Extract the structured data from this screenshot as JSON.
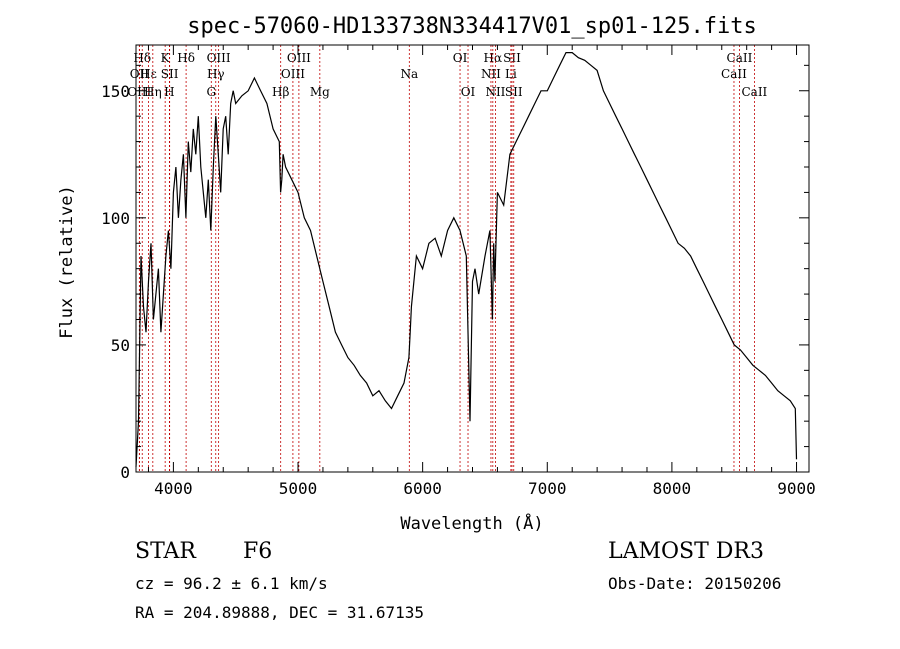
{
  "chart_data": {
    "type": "line",
    "title": "spec-57060-HD133738N334417V01_sp01-125.fits",
    "xlabel": "Wavelength (Å)",
    "ylabel": "Flux (relative)",
    "xlim": [
      3700,
      9100
    ],
    "ylim": [
      0,
      168
    ],
    "x_ticks": [
      4000,
      5000,
      6000,
      7000,
      8000,
      9000
    ],
    "y_ticks": [
      0,
      50,
      100,
      150
    ],
    "grid": false,
    "series": [
      {
        "x": [
          3700,
          3720,
          3740,
          3760,
          3780,
          3800,
          3820,
          3840,
          3860,
          3880,
          3900,
          3920,
          3940,
          3960,
          3980,
          4000,
          4020,
          4040,
          4060,
          4080,
          4100,
          4120,
          4140,
          4160,
          4180,
          4200,
          4220,
          4240,
          4260,
          4280,
          4300,
          4320,
          4340,
          4360,
          4380,
          4400,
          4420,
          4440,
          4460,
          4480,
          4500,
          4550,
          4600,
          4650,
          4700,
          4750,
          4800,
          4850,
          4860,
          4870,
          4880,
          4900,
          4950,
          5000,
          5050,
          5100,
          5150,
          5200,
          5250,
          5300,
          5350,
          5400,
          5450,
          5500,
          5550,
          5600,
          5650,
          5700,
          5750,
          5800,
          5850,
          5890,
          5900,
          5910,
          5950,
          6000,
          6050,
          6100,
          6150,
          6200,
          6250,
          6300,
          6350,
          6380,
          6400,
          6420,
          6450,
          6500,
          6540,
          6560,
          6570,
          6580,
          6600,
          6650,
          6700,
          6750,
          6800,
          6850,
          6900,
          6950,
          7000,
          7050,
          7100,
          7150,
          7200,
          7250,
          7300,
          7350,
          7400,
          7450,
          7500,
          7550,
          7600,
          7650,
          7700,
          7750,
          7800,
          7850,
          7900,
          7950,
          8000,
          8050,
          8100,
          8150,
          8200,
          8250,
          8300,
          8350,
          8400,
          8450,
          8500,
          8550,
          8600,
          8650,
          8700,
          8750,
          8800,
          8850,
          8900,
          8950,
          8990,
          9000
        ],
        "y": [
          2,
          20,
          85,
          65,
          55,
          75,
          90,
          60,
          70,
          80,
          55,
          70,
          85,
          95,
          80,
          110,
          120,
          100,
          115,
          125,
          100,
          130,
          118,
          135,
          125,
          140,
          120,
          110,
          100,
          115,
          95,
          120,
          140,
          125,
          110,
          135,
          140,
          125,
          145,
          150,
          145,
          148,
          150,
          155,
          150,
          145,
          135,
          130,
          110,
          115,
          125,
          120,
          115,
          110,
          100,
          95,
          85,
          75,
          65,
          55,
          50,
          45,
          42,
          38,
          35,
          30,
          32,
          28,
          25,
          30,
          35,
          45,
          55,
          65,
          85,
          80,
          90,
          92,
          85,
          95,
          100,
          95,
          85,
          20,
          75,
          80,
          70,
          85,
          95,
          60,
          90,
          75,
          110,
          105,
          125,
          130,
          135,
          140,
          145,
          150,
          150,
          155,
          160,
          165,
          165,
          163,
          162,
          160,
          158,
          150,
          145,
          140,
          135,
          130,
          125,
          120,
          115,
          110,
          105,
          100,
          95,
          90,
          88,
          85,
          80,
          75,
          70,
          65,
          60,
          55,
          50,
          48,
          45,
          42,
          40,
          38,
          35,
          32,
          30,
          28,
          25,
          5
        ]
      }
    ],
    "line_markers": [
      {
        "label": "Hδ",
        "x": 3750,
        "row": 1
      },
      {
        "label": "OII",
        "x": 3727,
        "row": 2
      },
      {
        "label": "OIII",
        "x": 3727,
        "row": 3
      },
      {
        "label": "K",
        "x": 3934,
        "row": 1
      },
      {
        "label": "Hε",
        "x": 3800,
        "row": 2
      },
      {
        "label": "Hη",
        "x": 3835,
        "row": 3
      },
      {
        "label": "Hδ",
        "x": 4102,
        "row": 1
      },
      {
        "label": "SII",
        "x": 3970,
        "row": 2
      },
      {
        "label": "H",
        "x": 3968,
        "row": 3
      },
      {
        "label": "OIII",
        "x": 4363,
        "row": 1
      },
      {
        "label": "Hγ",
        "x": 4340,
        "row": 2
      },
      {
        "label": "G",
        "x": 4304,
        "row": 3
      },
      {
        "label": "OIII",
        "x": 5007,
        "row": 1
      },
      {
        "label": "OIII",
        "x": 4959,
        "row": 2
      },
      {
        "label": "Hβ",
        "x": 4861,
        "row": 3
      },
      {
        "label": "Mg",
        "x": 5175,
        "row": 3
      },
      {
        "label": "Na",
        "x": 5893,
        "row": 2
      },
      {
        "label": "OI",
        "x": 6300,
        "row": 1
      },
      {
        "label": "OI",
        "x": 6364,
        "row": 3
      },
      {
        "label": "Hα",
        "x": 6563,
        "row": 1
      },
      {
        "label": "SII",
        "x": 6717,
        "row": 1
      },
      {
        "label": "NII",
        "x": 6548,
        "row": 2
      },
      {
        "label": "Li",
        "x": 6708,
        "row": 2
      },
      {
        "label": "NII",
        "x": 6584,
        "row": 3
      },
      {
        "label": "SII",
        "x": 6731,
        "row": 3
      },
      {
        "label": "CaII",
        "x": 8542,
        "row": 1
      },
      {
        "label": "CaII",
        "x": 8498,
        "row": 2
      },
      {
        "label": "CaII",
        "x": 8662,
        "row": 3
      }
    ]
  },
  "info": {
    "class": "STAR",
    "subclass": "F6",
    "survey": "LAMOST DR3",
    "cz": "cz = 96.2 ± 6.1 km/s",
    "obs_date": "Obs-Date: 20150206",
    "coords": "RA = 204.89888, DEC =  31.67135"
  }
}
